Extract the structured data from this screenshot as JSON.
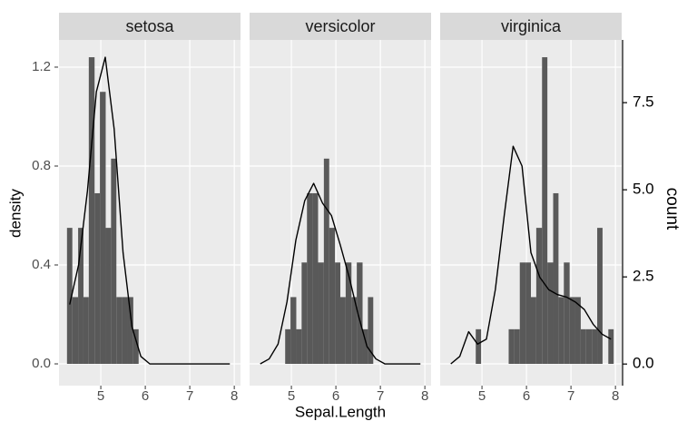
{
  "chart_data": {
    "type": "histogram",
    "x_label": "Sepal.Length",
    "y_label": "density",
    "y2_label": "count",
    "bins": [
      4.24,
      4.36,
      4.49,
      4.61,
      4.73,
      4.86,
      4.98,
      5.11,
      5.23,
      5.35,
      5.48,
      5.6,
      5.73,
      5.85,
      5.98,
      6.1,
      6.22,
      6.35,
      6.47,
      6.6,
      6.72,
      6.84,
      6.97,
      7.09,
      7.22,
      7.34,
      7.47,
      7.59,
      7.71,
      7.84,
      7.96
    ],
    "xlim": [
      4.06,
      8.14
    ],
    "xticks": [
      5,
      6,
      7,
      8
    ],
    "ylim": [
      -0.088,
      1.31
    ],
    "yticks": [
      {
        "value": 0,
        "label": "0.0"
      },
      0.4,
      0.8,
      1.2
    ],
    "y2lim": [
      -0.62,
      9.3
    ],
    "y2ticks": [
      {
        "value": 0,
        "label": "0.0"
      },
      2.5,
      {
        "value": 5,
        "label": "5.0"
      },
      7.5
    ],
    "grid": true,
    "bar_color": "#595959",
    "line_color": "#000000",
    "density_x": [
      4.3,
      4.5,
      4.7,
      4.9,
      5.1,
      5.3,
      5.5,
      5.7,
      5.9,
      6.1,
      6.3,
      6.5,
      6.7,
      6.9,
      7.1,
      7.3,
      7.5,
      7.7,
      7.9
    ],
    "series": [
      {
        "name": "setosa",
        "values": [
          0.55,
          0.27,
          0.55,
          0.27,
          1.24,
          0.69,
          1.1,
          0.55,
          0.83,
          0.27,
          0.27,
          0.27,
          0.14,
          0,
          0,
          0,
          0,
          0,
          0,
          0,
          0,
          0,
          0,
          0,
          0,
          0,
          0,
          0,
          0,
          0
        ],
        "density": [
          0.24,
          0.4,
          0.7,
          1.1,
          1.24,
          0.95,
          0.45,
          0.15,
          0.03,
          0,
          0,
          0,
          0,
          0,
          0,
          0,
          0,
          0,
          0
        ]
      },
      {
        "name": "versicolor",
        "values": [
          0,
          0,
          0,
          0,
          0,
          0.14,
          0.27,
          0.14,
          0.41,
          0.69,
          0.69,
          0.41,
          0.83,
          0.55,
          0.41,
          0.27,
          0.41,
          0.27,
          0.41,
          0.14,
          0.27,
          0,
          0,
          0,
          0,
          0,
          0,
          0,
          0,
          0
        ],
        "density": [
          0,
          0.02,
          0.08,
          0.25,
          0.5,
          0.66,
          0.73,
          0.65,
          0.6,
          0.48,
          0.35,
          0.2,
          0.07,
          0.02,
          0,
          0,
          0,
          0,
          0
        ]
      },
      {
        "name": "virginica",
        "values": [
          0,
          0,
          0,
          0,
          0,
          0.14,
          0,
          0,
          0,
          0,
          0,
          0.14,
          0.14,
          0.41,
          0.41,
          0.27,
          0.55,
          1.24,
          0.41,
          0.69,
          0.27,
          0.41,
          0.27,
          0.27,
          0.14,
          0.14,
          0.14,
          0.55,
          0,
          0.14
        ],
        "density": [
          0,
          0.03,
          0.13,
          0.08,
          0.1,
          0.3,
          0.6,
          0.88,
          0.8,
          0.45,
          0.35,
          0.3,
          0.28,
          0.27,
          0.25,
          0.22,
          0.16,
          0.12,
          0.1
        ]
      }
    ]
  }
}
